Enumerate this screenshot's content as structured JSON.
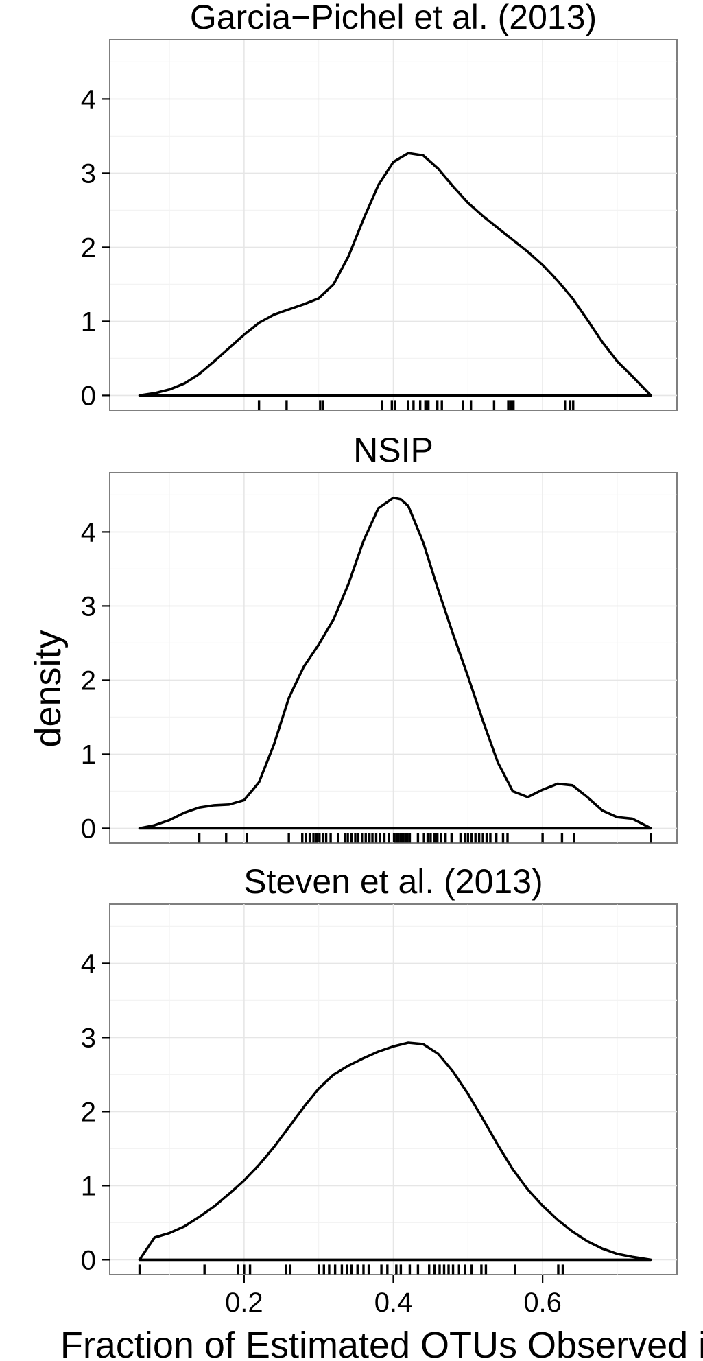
{
  "chart_data": {
    "type": "area",
    "facet_layout": "vertical",
    "xlabel": "Fraction of Estimated OTUs Observed in",
    "ylabel": "density",
    "xlim": [
      0.02,
      0.78
    ],
    "ylim": [
      -0.2,
      4.8
    ],
    "xticks": [
      0.2,
      0.4,
      0.6
    ],
    "xtick_labels": [
      "0.2",
      "0.4",
      "0.6"
    ],
    "yticks": [
      0,
      1,
      2,
      3,
      4
    ],
    "ytick_labels": [
      "0",
      "1",
      "2",
      "3",
      "4"
    ],
    "grid": true,
    "line_color": "#000000",
    "panels": [
      {
        "title": "Garcia−Pichel et al. (2013)",
        "density": {
          "x": [
            0.06,
            0.08,
            0.1,
            0.12,
            0.14,
            0.16,
            0.18,
            0.2,
            0.22,
            0.24,
            0.26,
            0.28,
            0.3,
            0.32,
            0.34,
            0.36,
            0.38,
            0.4,
            0.42,
            0.44,
            0.46,
            0.48,
            0.5,
            0.52,
            0.54,
            0.56,
            0.58,
            0.6,
            0.62,
            0.64,
            0.66,
            0.68,
            0.7,
            0.72,
            0.745
          ],
          "y": [
            0.0,
            0.03,
            0.08,
            0.16,
            0.29,
            0.46,
            0.64,
            0.82,
            0.98,
            1.09,
            1.16,
            1.23,
            1.31,
            1.5,
            1.88,
            2.38,
            2.84,
            3.15,
            3.27,
            3.24,
            3.06,
            2.82,
            2.6,
            2.42,
            2.26,
            2.1,
            1.94,
            1.76,
            1.55,
            1.31,
            1.02,
            0.72,
            0.46,
            0.26,
            0.0
          ]
        },
        "rug": [
          0.22,
          0.257,
          0.302,
          0.306,
          0.385,
          0.398,
          0.402,
          0.42,
          0.427,
          0.436,
          0.443,
          0.447,
          0.459,
          0.465,
          0.493,
          0.504,
          0.535,
          0.554,
          0.557,
          0.561,
          0.63,
          0.637,
          0.641
        ]
      },
      {
        "title": "NSIP",
        "density": {
          "x": [
            0.06,
            0.08,
            0.1,
            0.12,
            0.14,
            0.16,
            0.18,
            0.2,
            0.22,
            0.24,
            0.26,
            0.28,
            0.3,
            0.32,
            0.34,
            0.36,
            0.38,
            0.4,
            0.41,
            0.42,
            0.44,
            0.46,
            0.48,
            0.5,
            0.52,
            0.54,
            0.56,
            0.58,
            0.6,
            0.62,
            0.64,
            0.66,
            0.68,
            0.7,
            0.72,
            0.745
          ],
          "y": [
            0.0,
            0.04,
            0.11,
            0.21,
            0.28,
            0.31,
            0.32,
            0.38,
            0.62,
            1.13,
            1.76,
            2.18,
            2.48,
            2.82,
            3.3,
            3.88,
            4.32,
            4.46,
            4.44,
            4.35,
            3.86,
            3.22,
            2.62,
            2.05,
            1.45,
            0.89,
            0.5,
            0.42,
            0.52,
            0.6,
            0.58,
            0.42,
            0.24,
            0.15,
            0.13,
            0.0
          ]
        },
        "rug": [
          0.14,
          0.176,
          0.204,
          0.26,
          0.278,
          0.283,
          0.288,
          0.293,
          0.297,
          0.301,
          0.306,
          0.31,
          0.316,
          0.326,
          0.335,
          0.339,
          0.344,
          0.349,
          0.353,
          0.358,
          0.363,
          0.368,
          0.372,
          0.377,
          0.382,
          0.388,
          0.394,
          0.401,
          0.404,
          0.407,
          0.41,
          0.413,
          0.416,
          0.419,
          0.422,
          0.433,
          0.441,
          0.446,
          0.45,
          0.455,
          0.459,
          0.464,
          0.47,
          0.478,
          0.49,
          0.496,
          0.5,
          0.505,
          0.51,
          0.515,
          0.52,
          0.525,
          0.53,
          0.538,
          0.547,
          0.553,
          0.6,
          0.626,
          0.642,
          0.745
        ]
      },
      {
        "title": "Steven et al. (2013)",
        "density": {
          "x": [
            0.06,
            0.08,
            0.1,
            0.12,
            0.14,
            0.16,
            0.18,
            0.2,
            0.22,
            0.24,
            0.26,
            0.28,
            0.3,
            0.32,
            0.34,
            0.36,
            0.38,
            0.4,
            0.42,
            0.44,
            0.46,
            0.48,
            0.5,
            0.52,
            0.54,
            0.56,
            0.58,
            0.6,
            0.62,
            0.64,
            0.66,
            0.68,
            0.7,
            0.72,
            0.745
          ],
          "y": [
            0.0,
            0.3,
            0.36,
            0.45,
            0.58,
            0.72,
            0.89,
            1.07,
            1.28,
            1.52,
            1.79,
            2.06,
            2.31,
            2.5,
            2.62,
            2.72,
            2.81,
            2.88,
            2.93,
            2.91,
            2.78,
            2.54,
            2.24,
            1.9,
            1.55,
            1.22,
            0.95,
            0.73,
            0.54,
            0.38,
            0.25,
            0.15,
            0.08,
            0.04,
            0.0
          ]
        },
        "rug": [
          0.06,
          0.147,
          0.192,
          0.2,
          0.208,
          0.256,
          0.262,
          0.3,
          0.307,
          0.314,
          0.322,
          0.331,
          0.338,
          0.344,
          0.352,
          0.36,
          0.367,
          0.384,
          0.392,
          0.404,
          0.41,
          0.422,
          0.433,
          0.448,
          0.455,
          0.462,
          0.468,
          0.474,
          0.48,
          0.488,
          0.496,
          0.505,
          0.518,
          0.524,
          0.563,
          0.621,
          0.627
        ]
      }
    ]
  }
}
